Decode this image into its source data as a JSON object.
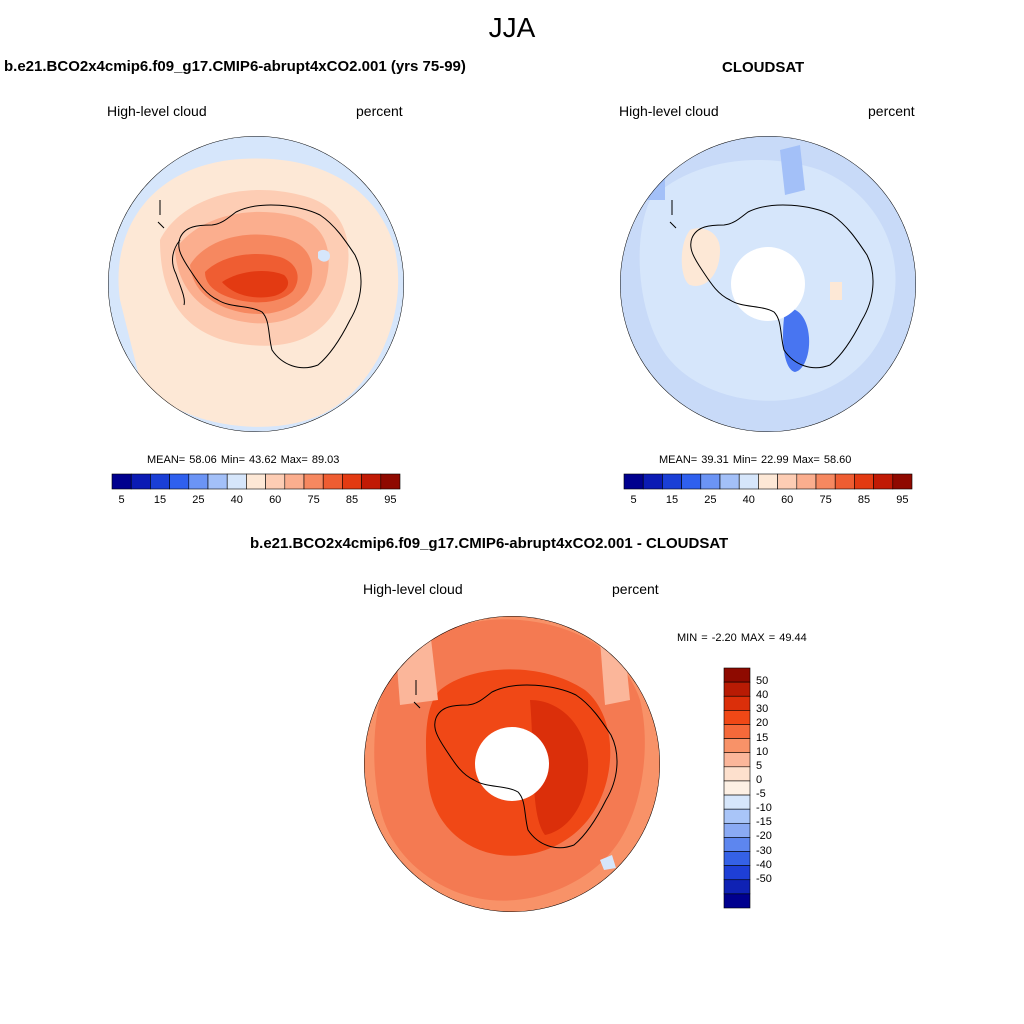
{
  "figure": {
    "season": "JJA"
  },
  "panels": {
    "model": {
      "title": "b.e21.BCO2x4cmip6.f09_g17.CMIP6-abrupt4xCO2.001 (yrs 75-99)",
      "variable": "High-level cloud",
      "units": "percent",
      "stats": "MEAN=  58.06  Min=  43.62  Max=  89.03"
    },
    "obs": {
      "title": "CLOUDSAT",
      "variable": "High-level cloud",
      "units": "percent",
      "stats": "MEAN=  39.31  Min=  22.99  Max=  58.60"
    },
    "diff": {
      "title": "b.e21.BCO2x4cmip6.f09_g17.CMIP6-abrupt4xCO2.001 - CLOUDSAT",
      "variable": "High-level cloud",
      "units": "percent",
      "stats": "MIN =  -2.20 MAX =  49.44"
    }
  },
  "colorbars": {
    "main": {
      "colors": [
        "#00008e",
        "#0b1bb4",
        "#1a3fd6",
        "#2f60ee",
        "#6b94f5",
        "#a3c0f8",
        "#d6e6fb",
        "#fde8d6",
        "#fdcdb4",
        "#fbae8e",
        "#f68860",
        "#ef5d32",
        "#e33a12",
        "#c11a05",
        "#8f0900"
      ],
      "ticks": [
        "5",
        "15",
        "25",
        "40",
        "60",
        "75",
        "85",
        "95"
      ]
    },
    "diff": {
      "colors": [
        "#8e0a00",
        "#b81b04",
        "#db2f0a",
        "#f04816",
        "#f5693a",
        "#f89268",
        "#fbb69a",
        "#fde0cd",
        "#fdf0e4",
        "#d6e6fb",
        "#a9c5f8",
        "#8aaaf4",
        "#5d86ef",
        "#3561e6",
        "#1e3fd6",
        "#0f22b4",
        "#00008e"
      ],
      "ticks": [
        "50",
        "40",
        "30",
        "20",
        "15",
        "10",
        "5",
        "0",
        "-5",
        "-10",
        "-15",
        "-20",
        "-30",
        "-40",
        "-50"
      ]
    }
  },
  "maps": {
    "model_fill": "#fde8d6",
    "obs_fill": "#c8daf8",
    "diff_fill": "#f47a52",
    "ocean_light": "#d6e6fb"
  }
}
